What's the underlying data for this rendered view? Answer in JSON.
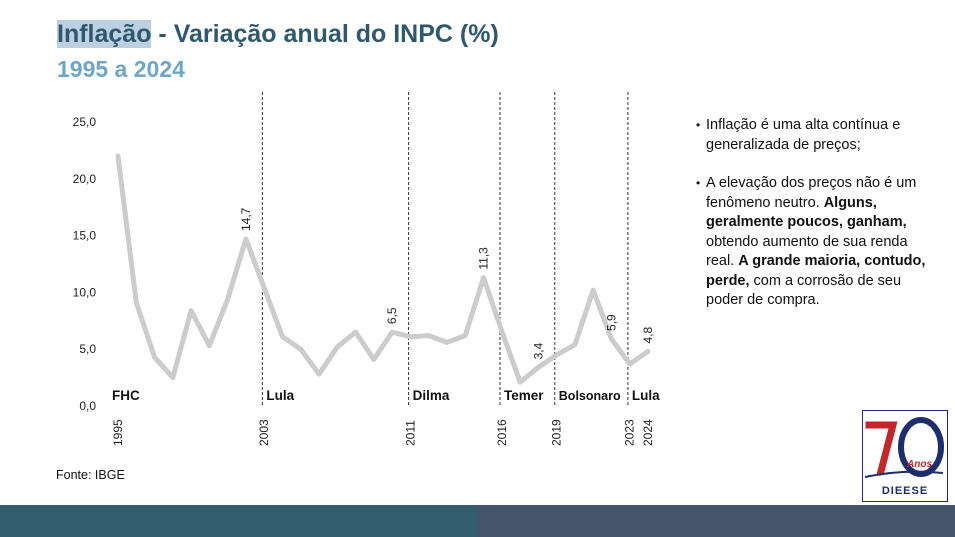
{
  "header": {
    "title_highlight": "Inflação",
    "title_rest": " - Variação anual do INPC (%)",
    "subtitle": "1995 a 2024"
  },
  "chart_data": {
    "type": "line",
    "title": "Inflação - Variação anual do INPC (%)",
    "subtitle": "1995 a 2024",
    "xlabel": "",
    "ylabel": "",
    "ylim": [
      0,
      25
    ],
    "yticks": [
      "0,0",
      "5,0",
      "10,0",
      "15,0",
      "20,0",
      "25,0"
    ],
    "xtick_labels": [
      "1995",
      "2003",
      "2011",
      "2016",
      "2019",
      "2023",
      "2024"
    ],
    "x": [
      1995,
      1996,
      1997,
      1998,
      1999,
      2000,
      2001,
      2002,
      2003,
      2004,
      2005,
      2006,
      2007,
      2008,
      2009,
      2010,
      2011,
      2012,
      2013,
      2014,
      2015,
      2016,
      2017,
      2018,
      2019,
      2020,
      2021,
      2022,
      2023,
      2024
    ],
    "series": [
      {
        "values": [
          22.0,
          9.1,
          4.3,
          2.5,
          8.4,
          5.3,
          9.4,
          14.7,
          10.4,
          6.1,
          5.0,
          2.8,
          5.2,
          6.5,
          4.1,
          6.5,
          6.1,
          6.2,
          5.6,
          6.2,
          11.3,
          6.6,
          2.1,
          3.4,
          4.5,
          5.4,
          10.2,
          5.9,
          3.7,
          4.8
        ]
      }
    ],
    "data_labels": [
      {
        "x": 2002,
        "text": "14,7"
      },
      {
        "x": 2010,
        "text": "6,5"
      },
      {
        "x": 2015,
        "text": "11,3"
      },
      {
        "x": 2018,
        "text": "3,4"
      },
      {
        "x": 2022,
        "text": "5,9"
      },
      {
        "x": 2024,
        "text": "4,8"
      }
    ],
    "periods": [
      {
        "label": "FHC",
        "start": 1995
      },
      {
        "label": "Lula",
        "start": 2003
      },
      {
        "label": "Dilma",
        "start": 2011
      },
      {
        "label": "Temer",
        "start": 2016
      },
      {
        "label": "Bolsonaro",
        "start": 2019
      },
      {
        "label": "Lula",
        "start": 2023
      }
    ],
    "line_color": "#cccccc",
    "grid": false,
    "legend": "none"
  },
  "bullets": [
    [
      {
        "text": "Inflação é uma alta contínua e generalizada de preços;",
        "bold": false
      }
    ],
    [
      {
        "text": "A elevação dos preços não é um fenômeno neutro. ",
        "bold": false
      },
      {
        "text": "Alguns, geralmente poucos, ganham,",
        "bold": true
      },
      {
        "text": " obtendo aumento de sua renda real. ",
        "bold": false
      },
      {
        "text": "A grande maioria, contudo, perde,",
        "bold": true
      },
      {
        "text": " com a corrosão de seu poder de compra.",
        "bold": false
      }
    ]
  ],
  "source": "Fonte: IBGE",
  "logo": {
    "number": "70",
    "anos": "Anos",
    "name": "DIEESE",
    "colors": {
      "red": "#c0282a",
      "navy": "#1d2d6e"
    }
  }
}
